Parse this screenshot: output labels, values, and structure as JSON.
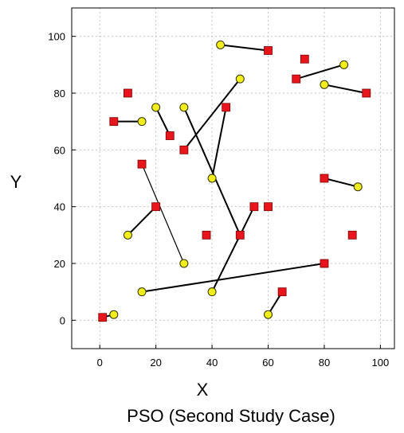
{
  "chart_data": {
    "type": "scatter",
    "caption": "PSO (Second Study Case)",
    "xlabel": "X",
    "ylabel": "Y",
    "xlim": [
      -10,
      105
    ],
    "ylim": [
      -10,
      110
    ],
    "x_ticks": [
      0,
      20,
      40,
      60,
      80,
      100
    ],
    "y_ticks": [
      0,
      20,
      40,
      60,
      80,
      100
    ],
    "grid": true,
    "series": [
      {
        "marker": "square",
        "color": "#e8151c",
        "points": [
          {
            "x": 1,
            "y": 1
          },
          {
            "x": 5,
            "y": 70
          },
          {
            "x": 10,
            "y": 80
          },
          {
            "x": 15,
            "y": 55
          },
          {
            "x": 20,
            "y": 40
          },
          {
            "x": 25,
            "y": 65
          },
          {
            "x": 30,
            "y": 60
          },
          {
            "x": 38,
            "y": 30
          },
          {
            "x": 45,
            "y": 75
          },
          {
            "x": 50,
            "y": 30
          },
          {
            "x": 55,
            "y": 40
          },
          {
            "x": 60,
            "y": 40
          },
          {
            "x": 60,
            "y": 95
          },
          {
            "x": 65,
            "y": 10
          },
          {
            "x": 70,
            "y": 85
          },
          {
            "x": 73,
            "y": 92
          },
          {
            "x": 80,
            "y": 20
          },
          {
            "x": 80,
            "y": 50
          },
          {
            "x": 90,
            "y": 30
          },
          {
            "x": 95,
            "y": 80
          }
        ]
      },
      {
        "marker": "circle",
        "color": "#f2ee1b",
        "points": [
          {
            "x": 5,
            "y": 2
          },
          {
            "x": 10,
            "y": 30
          },
          {
            "x": 15,
            "y": 10
          },
          {
            "x": 15,
            "y": 70
          },
          {
            "x": 20,
            "y": 75
          },
          {
            "x": 30,
            "y": 20
          },
          {
            "x": 30,
            "y": 75
          },
          {
            "x": 40,
            "y": 10
          },
          {
            "x": 40,
            "y": 50
          },
          {
            "x": 43,
            "y": 97
          },
          {
            "x": 50,
            "y": 85
          },
          {
            "x": 60,
            "y": 2
          },
          {
            "x": 80,
            "y": 83
          },
          {
            "x": 87,
            "y": 90
          },
          {
            "x": 92,
            "y": 47
          }
        ]
      }
    ],
    "connections": [
      {
        "from": [
          5,
          2
        ],
        "to": [
          1,
          1
        ],
        "style": "thick"
      },
      {
        "from": [
          15,
          70
        ],
        "to": [
          5,
          70
        ],
        "style": "thick"
      },
      {
        "from": [
          10,
          30
        ],
        "to": [
          20,
          40
        ],
        "style": "thick"
      },
      {
        "from": [
          15,
          55
        ],
        "to": [
          30,
          20
        ],
        "style": "thin"
      },
      {
        "from": [
          20,
          75
        ],
        "to": [
          25,
          65
        ],
        "style": "thick"
      },
      {
        "from": [
          50,
          85
        ],
        "to": [
          30,
          60
        ],
        "style": "thick"
      },
      {
        "from": [
          40,
          50
        ],
        "to": [
          45,
          75
        ],
        "style": "thick"
      },
      {
        "from": [
          30,
          75
        ],
        "to": [
          50,
          30
        ],
        "style": "thick"
      },
      {
        "from": [
          40,
          10
        ],
        "to": [
          55,
          40
        ],
        "style": "thick"
      },
      {
        "from": [
          15,
          10
        ],
        "to": [
          80,
          20
        ],
        "style": "thick"
      },
      {
        "from": [
          43,
          97
        ],
        "to": [
          60,
          95
        ],
        "style": "thick"
      },
      {
        "from": [
          60,
          2
        ],
        "to": [
          65,
          10
        ],
        "style": "thick"
      },
      {
        "from": [
          87,
          90
        ],
        "to": [
          70,
          85
        ],
        "style": "thick"
      },
      {
        "from": [
          80,
          83
        ],
        "to": [
          95,
          80
        ],
        "style": "thick"
      },
      {
        "from": [
          80,
          50
        ],
        "to": [
          92,
          47
        ],
        "style": "thick"
      }
    ]
  }
}
